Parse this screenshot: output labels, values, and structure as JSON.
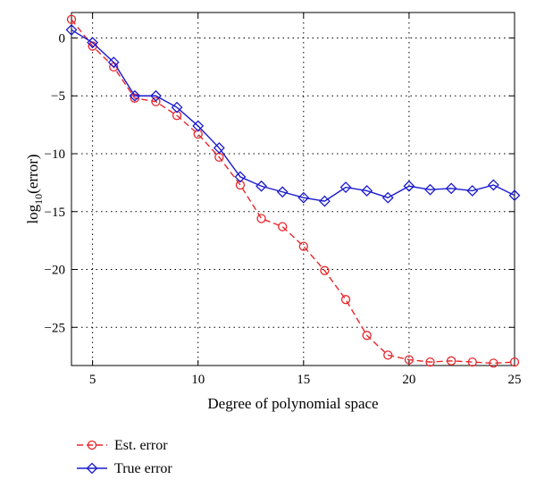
{
  "chart_data": {
    "type": "line",
    "title": "",
    "xlabel": "Degree of polynomial space",
    "ylabel_base": "log",
    "ylabel_sub": "10",
    "ylabel_rest": "(error)",
    "xlim": [
      4,
      25
    ],
    "ylim": [
      -28.3,
      2.2
    ],
    "xticks": [
      5,
      10,
      15,
      20,
      25
    ],
    "yticks": [
      0,
      -5,
      -10,
      -15,
      -20,
      -25
    ],
    "grid": true,
    "legend_placement": "below-left",
    "series": [
      {
        "name": "Est. error",
        "color": "#e8262b",
        "line_style": "dashed",
        "marker": "circle",
        "x": [
          4,
          5,
          6,
          7,
          8,
          9,
          10,
          11,
          12,
          13,
          14,
          15,
          16,
          17,
          18,
          19,
          20,
          21,
          22,
          23,
          24,
          25
        ],
        "y": [
          1.6,
          -0.7,
          -2.5,
          -5.2,
          -5.5,
          -6.7,
          -8.3,
          -10.3,
          -12.7,
          -15.6,
          -16.3,
          -18.0,
          -20.1,
          -22.6,
          -25.7,
          -27.4,
          -27.8,
          -28.0,
          -27.9,
          -28.0,
          -28.1,
          -28.0
        ]
      },
      {
        "name": "True error",
        "color": "#1a1acd",
        "line_style": "solid",
        "marker": "diamond",
        "x": [
          4,
          5,
          6,
          7,
          8,
          9,
          10,
          11,
          12,
          13,
          14,
          15,
          16,
          17,
          18,
          19,
          20,
          21,
          22,
          23,
          24,
          25
        ],
        "y": [
          0.7,
          -0.4,
          -2.1,
          -5.0,
          -5.0,
          -6.0,
          -7.6,
          -9.5,
          -12.0,
          -12.8,
          -13.3,
          -13.8,
          -14.1,
          -12.9,
          -13.2,
          -13.8,
          -12.8,
          -13.1,
          -13.0,
          -13.2,
          -12.7,
          -13.6
        ]
      }
    ]
  }
}
